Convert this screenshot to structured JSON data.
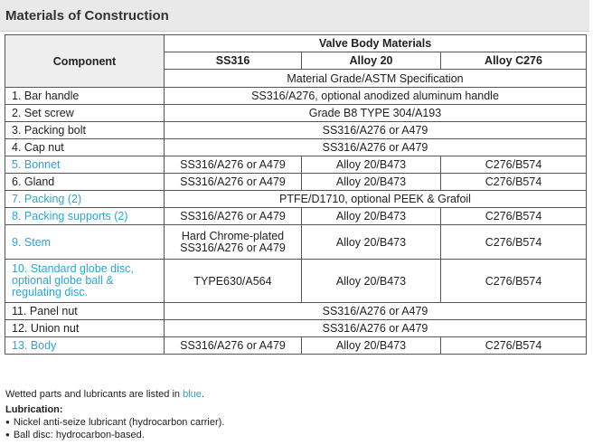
{
  "title": "Materials of Construction",
  "table": {
    "component_header": "Component",
    "group_header": "Valve Body Materials",
    "material_columns": [
      "SS316",
      "Alloy 20",
      "Alloy C276"
    ],
    "spec_header": "Material Grade/ASTM Specification",
    "rows": [
      {
        "component": "1. Bar handle",
        "wetted": false,
        "span": "SS316/A276, optional anodized aluminum handle"
      },
      {
        "component": "2. Set screw",
        "wetted": false,
        "span": "Grade B8 TYPE 304/A193"
      },
      {
        "component": "3. Packing bolt",
        "wetted": false,
        "span": "SS316/A276 or A479"
      },
      {
        "component": "4. Cap nut",
        "wetted": false,
        "span": "SS316/A276 or A479"
      },
      {
        "component": "5. Bonnet",
        "wetted": true,
        "cells": [
          "SS316/A276 or A479",
          "Alloy 20/B473",
          "C276/B574"
        ]
      },
      {
        "component": "6. Gland",
        "wetted": false,
        "cells": [
          "SS316/A276 or A479",
          "Alloy 20/B473",
          "C276/B574"
        ]
      },
      {
        "component": "7. Packing (2)",
        "wetted": true,
        "span": "PTFE/D1710, optional PEEK & Grafoil"
      },
      {
        "component": "8. Packing supports (2)",
        "wetted": true,
        "cells": [
          "SS316/A276 or A479",
          "Alloy 20/B473",
          "C276/B574"
        ]
      },
      {
        "component": "9. Stem",
        "wetted": true,
        "cells": [
          "Hard Chrome-plated SS316/A276 or A479",
          "Alloy 20/B473",
          "C276/B574"
        ]
      },
      {
        "component": "10. Standard globe disc, optional globe ball & regulating disc.",
        "wetted": true,
        "cells": [
          "TYPE630/A564",
          "Alloy 20/B473",
          "C276/B574"
        ]
      },
      {
        "component": "11. Panel nut",
        "wetted": false,
        "span": "SS316/A276 or A479"
      },
      {
        "component": "12. Union nut",
        "wetted": false,
        "span": "SS316/A276 or A479"
      },
      {
        "component": "13. Body",
        "wetted": true,
        "cells": [
          "SS316/A276 or A479",
          "Alloy 20/B473",
          "C276/B574"
        ]
      }
    ]
  },
  "notes": {
    "wetted_prefix": "Wetted parts and lubricants are listed in",
    "wetted_color_word": "blue",
    "wetted_suffix": ".",
    "lubrication_heading": "Lubrication:",
    "lubrication_items": [
      "Nickel anti-seize lubricant (hydrocarbon carrier).",
      "Ball disc: hydrocarbon-based."
    ]
  },
  "colors": {
    "wetted_text": "#2aa5d6",
    "title_bar": "#e9e9e9",
    "border": "#555555"
  }
}
